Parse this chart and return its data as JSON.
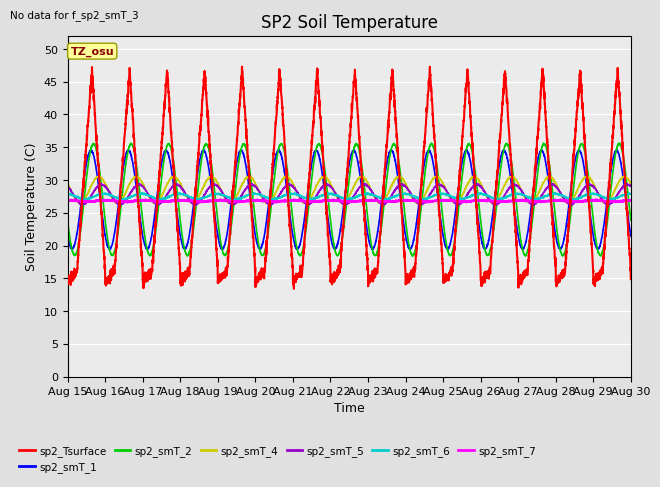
{
  "title": "SP2 Soil Temperature",
  "subtitle": "No data for f_sp2_smT_3",
  "xlabel": "Time",
  "ylabel": "Soil Temperature (C)",
  "ylim": [
    0,
    52
  ],
  "yticks": [
    0,
    5,
    10,
    15,
    20,
    25,
    30,
    35,
    40,
    45,
    50
  ],
  "tz_label": "TZ_osu",
  "start_day": 15,
  "end_day": 30,
  "n_days": 15,
  "series": {
    "sp2_Tsurface": {
      "color": "#FF0000",
      "lw": 1.5,
      "amp": 18.0,
      "mean": 27.0,
      "depth": 0
    },
    "sp2_smT_1": {
      "color": "#0000FF",
      "lw": 1.2,
      "amp": 7.5,
      "mean": 27.0,
      "depth": 1
    },
    "sp2_smT_2": {
      "color": "#00CC00",
      "lw": 1.2,
      "amp": 8.5,
      "mean": 27.0,
      "depth": 2
    },
    "sp2_smT_4": {
      "color": "#CCCC00",
      "lw": 1.2,
      "amp": 2.0,
      "mean": 28.5,
      "depth": 4
    },
    "sp2_smT_5": {
      "color": "#9900CC",
      "lw": 1.2,
      "amp": 1.5,
      "mean": 27.8,
      "depth": 5
    },
    "sp2_smT_6": {
      "color": "#00CCCC",
      "lw": 1.2,
      "amp": 0.4,
      "mean": 27.5,
      "depth": 6
    },
    "sp2_smT_7": {
      "color": "#FF00FF",
      "lw": 1.5,
      "amp": 0.1,
      "mean": 26.8,
      "depth": 7
    }
  },
  "background_color": "#E0E0E0",
  "plot_bg_color": "#EBEBEB",
  "grid_color": "#FFFFFF",
  "title_fontsize": 12,
  "label_fontsize": 9,
  "tick_fontsize": 8
}
